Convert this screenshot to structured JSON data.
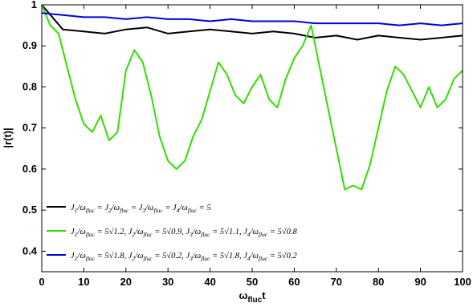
{
  "chart_data": {
    "type": "line",
    "xlabel": {
      "main": "ω",
      "sub": "fluc",
      "tail": "t"
    },
    "ylabel": "|r(t)|",
    "xlim": [
      0,
      100
    ],
    "ylim": [
      0.35,
      1.0
    ],
    "xticks": [
      "0",
      "10",
      "20",
      "30",
      "40",
      "50",
      "60",
      "70",
      "80",
      "90",
      "100"
    ],
    "yticks": [
      "0.4",
      "0.5",
      "0.6",
      "0.7",
      "0.8",
      "0.9",
      "1"
    ],
    "grid": false,
    "legend_position": "bottom-left",
    "series": [
      {
        "name": "J₁/ω_fluc = J₂/ω_fluc = J₃/ω_fluc = J₄/ω_fluc = 5",
        "color": "#000000",
        "x": [
          0,
          5,
          10,
          15,
          20,
          25,
          30,
          35,
          40,
          45,
          50,
          55,
          60,
          65,
          70,
          75,
          80,
          85,
          90,
          95,
          100
        ],
        "y": [
          1.0,
          0.94,
          0.935,
          0.93,
          0.94,
          0.945,
          0.93,
          0.935,
          0.94,
          0.935,
          0.93,
          0.935,
          0.93,
          0.92,
          0.925,
          0.915,
          0.925,
          0.92,
          0.915,
          0.92,
          0.925
        ]
      },
      {
        "name": "J₁/ω_fluc = 5√1.2, J₂/ω_fluc = 5√0.9, J₃/ω_fluc = 5√1.1, J₄/ω_fluc = 5√0.8",
        "color": "#33dd00",
        "x": [
          0,
          2,
          4,
          6,
          8,
          10,
          12,
          14,
          16,
          18,
          20,
          22,
          24,
          26,
          28,
          30,
          32,
          34,
          36,
          38,
          40,
          42,
          44,
          46,
          48,
          50,
          52,
          54,
          56,
          58,
          60,
          62,
          64,
          66,
          68,
          70,
          72,
          74,
          76,
          78,
          80,
          82,
          84,
          86,
          88,
          90,
          92,
          94,
          96,
          98,
          100
        ],
        "y": [
          1.0,
          0.95,
          0.93,
          0.85,
          0.77,
          0.71,
          0.69,
          0.73,
          0.67,
          0.69,
          0.84,
          0.89,
          0.86,
          0.78,
          0.68,
          0.62,
          0.6,
          0.62,
          0.68,
          0.72,
          0.79,
          0.86,
          0.83,
          0.78,
          0.76,
          0.8,
          0.83,
          0.77,
          0.75,
          0.82,
          0.87,
          0.9,
          0.95,
          0.85,
          0.75,
          0.65,
          0.55,
          0.56,
          0.55,
          0.61,
          0.7,
          0.79,
          0.85,
          0.83,
          0.79,
          0.75,
          0.8,
          0.75,
          0.77,
          0.82,
          0.84
        ]
      },
      {
        "name": "J₁/ω_fluc = 5√1.8, J₂/ω_fluc = 5√0.2, J₃/ω_fluc = 5√1.8, J₄/ω_fluc = 5√0.2",
        "color": "#0000dd",
        "x": [
          0,
          5,
          10,
          15,
          20,
          25,
          30,
          35,
          40,
          45,
          50,
          55,
          60,
          65,
          70,
          75,
          80,
          85,
          90,
          95,
          100
        ],
        "y": [
          0.98,
          0.975,
          0.97,
          0.97,
          0.965,
          0.97,
          0.965,
          0.965,
          0.96,
          0.965,
          0.96,
          0.96,
          0.96,
          0.955,
          0.955,
          0.955,
          0.955,
          0.95,
          0.955,
          0.95,
          0.955
        ]
      }
    ]
  },
  "legend": [
    {
      "parts": [
        "J",
        "1",
        "/ω",
        "fluc",
        " = J",
        "2",
        "/ω",
        "fluc",
        " = J",
        "3",
        "/ω",
        "fluc",
        " = J",
        "4",
        "/ω",
        "fluc",
        " = 5"
      ]
    },
    {
      "parts": [
        "J",
        "1",
        "/ω",
        "fluc",
        " = 5√1.2, J",
        "2",
        "/ω",
        "fluc",
        " = 5√0.9, J",
        "3",
        "/ω",
        "fluc",
        " = 5√1.1, J",
        "4",
        "/ω",
        "fluc",
        " = 5√0.8"
      ]
    },
    {
      "parts": [
        "J",
        "1",
        "/ω",
        "fluc",
        " = 5√1.8, J",
        "2",
        "/ω",
        "fluc",
        " = 5√0.2, J",
        "3",
        "/ω",
        "fluc",
        " = 5√1.8, J",
        "4",
        "/ω",
        "fluc",
        " = 5√0.2"
      ]
    }
  ]
}
